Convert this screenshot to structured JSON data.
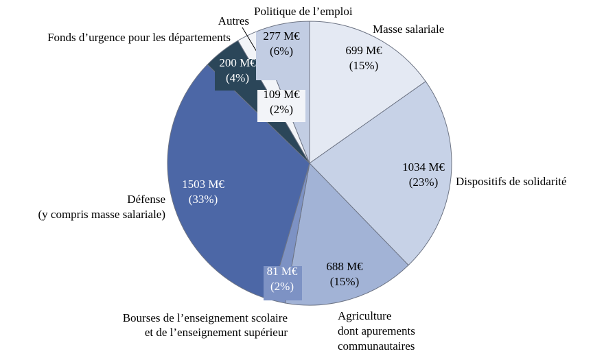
{
  "chart_data": {
    "type": "pie",
    "unit": "M€",
    "slices": [
      {
        "key": "masse",
        "label": [
          "Masse salariale"
        ],
        "value": 699,
        "pct": 15,
        "value_text": "699 M€",
        "pct_text": "(15%)",
        "color": "#e4e9f3",
        "text_color": "#000000",
        "box": false
      },
      {
        "key": "solidarite",
        "label": [
          "Dispositifs de solidarité"
        ],
        "value": 1034,
        "pct": 23,
        "value_text": "1034 M€",
        "pct_text": "(23%)",
        "color": "#c7d2e7",
        "text_color": "#000000",
        "box": false
      },
      {
        "key": "agriculture",
        "label": [
          "Agriculture",
          "dont apurements",
          "communautaires"
        ],
        "value": 688,
        "pct": 15,
        "value_text": "688 M€",
        "pct_text": "(15%)",
        "color": "#a2b3d6",
        "text_color": "#000000",
        "box": false
      },
      {
        "key": "bourses",
        "label": [
          "Bourses de l’enseignement scolaire",
          "et de l’enseignement supérieur"
        ],
        "value": 81,
        "pct": 2,
        "value_text": "81 M€",
        "pct_text": "(2%)",
        "color": "#7d92c4",
        "text_color": "#ffffff",
        "box": true
      },
      {
        "key": "defense",
        "label": [
          "Défense",
          "(y compris masse salariale)"
        ],
        "value": 1503,
        "pct": 33,
        "value_text": "1503 M€",
        "pct_text": "(33%)",
        "color": "#4c67a6",
        "text_color": "#ffffff",
        "box": false
      },
      {
        "key": "fonds",
        "label": [
          "Fonds d’urgence pour les départements"
        ],
        "value": 200,
        "pct": 4,
        "value_text": "200 M€",
        "pct_text": "(4%)",
        "color": "#2b4659",
        "text_color": "#ffffff",
        "box": true
      },
      {
        "key": "autres",
        "label": [
          "Autres"
        ],
        "value": 109,
        "pct": 2,
        "value_text": "109 M€",
        "pct_text": "(2%)",
        "color": "#f2f4f8",
        "text_color": "#000000",
        "box": true
      },
      {
        "key": "emploi",
        "label": [
          "Politique de l’emploi"
        ],
        "value": 277,
        "pct": 6,
        "value_text": "277 M€",
        "pct_text": "(6%)",
        "color": "#c2cde3",
        "text_color": "#000000",
        "box": true
      }
    ]
  }
}
